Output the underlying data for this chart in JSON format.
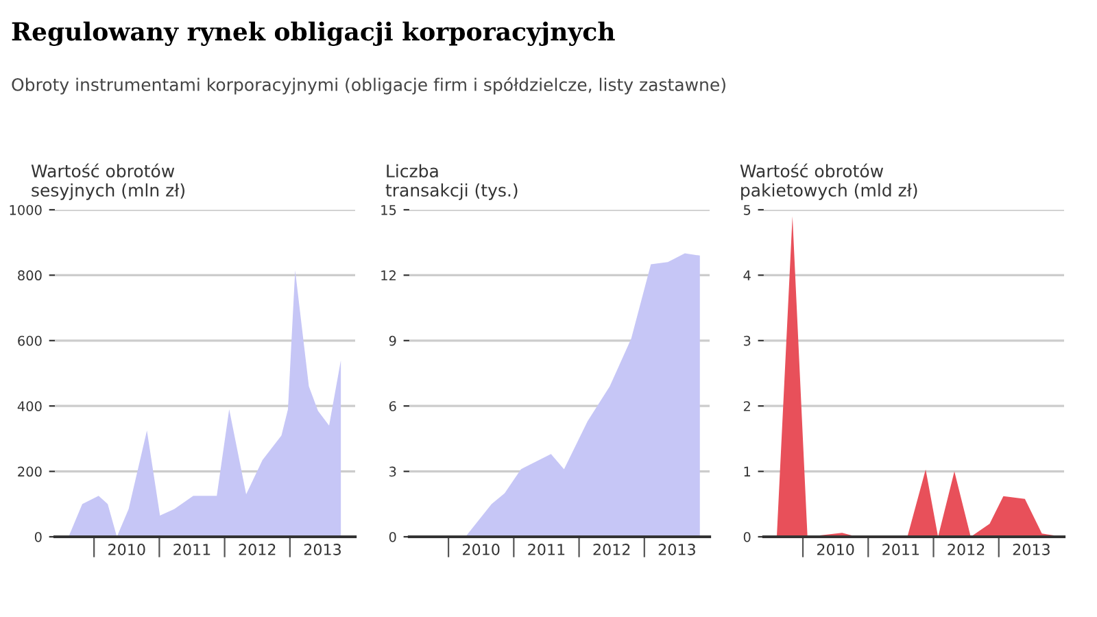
{
  "chart_data": [
    {
      "type": "area",
      "title": "Regulowany rynek obligacji korporacyjnych",
      "subtitle": "Obroty instrumentami korporacyjnymi (obligacje firm i spółdzielcze, listy zastawne)",
      "ylabel": "Wartość obrotów\nsesyjnych (mln zł)",
      "grid": "y",
      "x": [
        2009.61,
        2009.82,
        2010.07,
        2010.21,
        2010.35,
        2010.53,
        2010.81,
        2011.01,
        2011.23,
        2011.52,
        2011.88,
        2012.07,
        2012.33,
        2012.58,
        2012.87,
        2012.97,
        2013.08,
        2013.29,
        2013.43,
        2013.6,
        2013.78
      ],
      "series": [
        {
          "color": "#c6c6f6",
          "values": [
            0,
            100,
            125,
            100,
            0,
            85,
            325,
            65,
            85,
            125,
            125,
            390,
            130,
            235,
            310,
            390,
            815,
            460,
            385,
            340,
            540
          ]
        }
      ],
      "xlim": [
        2009.4,
        2014.0
      ],
      "xticks": [
        {
          "value": 2010,
          "label": null
        },
        {
          "value": 2010.5,
          "label": "2010"
        },
        {
          "value": 2011,
          "label": null
        },
        {
          "value": 2011.5,
          "label": "2011"
        },
        {
          "value": 2012,
          "label": null
        },
        {
          "value": 2012.5,
          "label": "2012"
        },
        {
          "value": 2013,
          "label": null
        },
        {
          "value": 2013.5,
          "label": "2013"
        }
      ],
      "ylim": [
        0,
        1000
      ],
      "yticks": [
        0,
        200,
        400,
        600,
        800,
        1000
      ]
    },
    {
      "type": "area",
      "ylabel": "Liczba\ntransakcji (tys.)",
      "grid": "y",
      "x": [
        2009.47,
        2010.26,
        2010.66,
        2010.86,
        2011.11,
        2011.57,
        2011.77,
        2012.13,
        2012.47,
        2012.8,
        2013.1,
        2013.36,
        2013.62,
        2013.85
      ],
      "series": [
        {
          "color": "#c6c6f6",
          "values": [
            0,
            0,
            1.5,
            2.0,
            3.1,
            3.8,
            3.1,
            5.3,
            6.9,
            9.1,
            12.5,
            12.6,
            13.0,
            12.9
          ]
        }
      ],
      "xlim": [
        2009.4,
        2014.0
      ],
      "xticks": [
        {
          "value": 2010,
          "label": null
        },
        {
          "value": 2010.5,
          "label": "2010"
        },
        {
          "value": 2011,
          "label": null
        },
        {
          "value": 2011.5,
          "label": "2011"
        },
        {
          "value": 2012,
          "label": null
        },
        {
          "value": 2012.5,
          "label": "2012"
        },
        {
          "value": 2013,
          "label": null
        },
        {
          "value": 2013.5,
          "label": "2013"
        }
      ],
      "ylim": [
        0,
        15
      ],
      "yticks": [
        0,
        3,
        6,
        9,
        12,
        15
      ]
    },
    {
      "type": "area",
      "ylabel": "Wartość obrotów\npakietowych (mld zł)",
      "grid": "y",
      "x": [
        2009.6,
        2009.84,
        2010.07,
        2010.6,
        2010.83,
        2011.6,
        2011.88,
        2012.07,
        2012.32,
        2012.57,
        2012.86,
        2013.07,
        2013.4,
        2013.66,
        2013.99
      ],
      "series": [
        {
          "color": "#e8505a",
          "values": [
            0,
            4.9,
            0,
            0.06,
            0,
            0,
            1.03,
            0,
            1.0,
            0,
            0.2,
            0.62,
            0.58,
            0.05,
            0
          ]
        }
      ],
      "xlim": [
        2009.4,
        2014.0
      ],
      "xticks": [
        {
          "value": 2010,
          "label": null
        },
        {
          "value": 2010.5,
          "label": "2010"
        },
        {
          "value": 2011,
          "label": null
        },
        {
          "value": 2011.5,
          "label": "2011"
        },
        {
          "value": 2012,
          "label": null
        },
        {
          "value": 2012.5,
          "label": "2012"
        },
        {
          "value": 2013,
          "label": null
        },
        {
          "value": 2013.5,
          "label": "2013"
        }
      ],
      "ylim": [
        0,
        5
      ],
      "yticks": [
        0,
        1,
        2,
        3,
        4,
        5
      ]
    }
  ]
}
